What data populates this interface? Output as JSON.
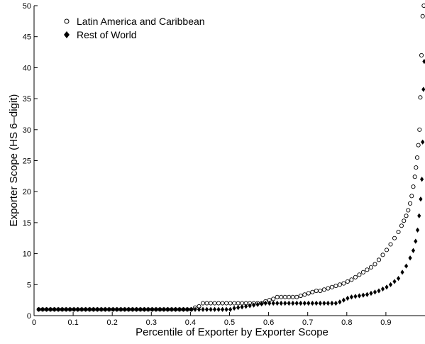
{
  "chart_data": {
    "type": "scatter",
    "title": "",
    "xlabel": "Percentile of Exporter by Exporter Scope",
    "ylabel": "Exporter Scope (HS 6–digit)",
    "xlim": [
      0,
      1
    ],
    "ylim": [
      0,
      50
    ],
    "xticks": [
      "0",
      "0.1",
      "0.2",
      "0.3",
      "0.4",
      "0.5",
      "0.6",
      "0.7",
      "0.8",
      "0.9"
    ],
    "yticks": [
      "0",
      "5",
      "10",
      "15",
      "20",
      "25",
      "30",
      "35",
      "40",
      "45",
      "50"
    ],
    "grid": false,
    "legend_position": "top-left",
    "series": [
      {
        "name": "Latin America and Caribbean",
        "marker": "open-circle",
        "color": "#000000",
        "points": [
          [
            0.012,
            1
          ],
          [
            0.022,
            1
          ],
          [
            0.032,
            1
          ],
          [
            0.042,
            1
          ],
          [
            0.052,
            1
          ],
          [
            0.062,
            1
          ],
          [
            0.072,
            1
          ],
          [
            0.082,
            1
          ],
          [
            0.092,
            1
          ],
          [
            0.102,
            1
          ],
          [
            0.112,
            1
          ],
          [
            0.122,
            1
          ],
          [
            0.132,
            1
          ],
          [
            0.142,
            1
          ],
          [
            0.152,
            1
          ],
          [
            0.162,
            1
          ],
          [
            0.172,
            1
          ],
          [
            0.182,
            1
          ],
          [
            0.192,
            1
          ],
          [
            0.202,
            1
          ],
          [
            0.212,
            1
          ],
          [
            0.222,
            1
          ],
          [
            0.232,
            1
          ],
          [
            0.242,
            1
          ],
          [
            0.252,
            1
          ],
          [
            0.262,
            1
          ],
          [
            0.272,
            1
          ],
          [
            0.282,
            1
          ],
          [
            0.292,
            1
          ],
          [
            0.302,
            1
          ],
          [
            0.312,
            1
          ],
          [
            0.322,
            1
          ],
          [
            0.332,
            1
          ],
          [
            0.342,
            1
          ],
          [
            0.352,
            1
          ],
          [
            0.362,
            1
          ],
          [
            0.372,
            1
          ],
          [
            0.382,
            1
          ],
          [
            0.392,
            1
          ],
          [
            0.402,
            1
          ],
          [
            0.412,
            1.3
          ],
          [
            0.422,
            1.5
          ],
          [
            0.432,
            2
          ],
          [
            0.442,
            2
          ],
          [
            0.452,
            2
          ],
          [
            0.462,
            2
          ],
          [
            0.472,
            2
          ],
          [
            0.482,
            2
          ],
          [
            0.492,
            2
          ],
          [
            0.502,
            2
          ],
          [
            0.512,
            2
          ],
          [
            0.522,
            2
          ],
          [
            0.532,
            2
          ],
          [
            0.542,
            2
          ],
          [
            0.552,
            2
          ],
          [
            0.562,
            2
          ],
          [
            0.572,
            2
          ],
          [
            0.582,
            2
          ],
          [
            0.592,
            2.3
          ],
          [
            0.602,
            2.5
          ],
          [
            0.612,
            2.7
          ],
          [
            0.622,
            3
          ],
          [
            0.632,
            3
          ],
          [
            0.642,
            3
          ],
          [
            0.652,
            3
          ],
          [
            0.662,
            3
          ],
          [
            0.672,
            3
          ],
          [
            0.682,
            3.2
          ],
          [
            0.692,
            3.4
          ],
          [
            0.702,
            3.6
          ],
          [
            0.712,
            3.8
          ],
          [
            0.722,
            4
          ],
          [
            0.732,
            4
          ],
          [
            0.742,
            4.2
          ],
          [
            0.752,
            4.4
          ],
          [
            0.762,
            4.6
          ],
          [
            0.772,
            4.8
          ],
          [
            0.782,
            5
          ],
          [
            0.792,
            5.2
          ],
          [
            0.802,
            5.5
          ],
          [
            0.812,
            5.8
          ],
          [
            0.822,
            6.2
          ],
          [
            0.832,
            6.6
          ],
          [
            0.842,
            7
          ],
          [
            0.852,
            7.4
          ],
          [
            0.862,
            7.8
          ],
          [
            0.872,
            8.3
          ],
          [
            0.882,
            9
          ],
          [
            0.892,
            9.8
          ],
          [
            0.902,
            10.6
          ],
          [
            0.912,
            11.5
          ],
          [
            0.922,
            12.5
          ],
          [
            0.932,
            13.5
          ],
          [
            0.94,
            14.5
          ],
          [
            0.946,
            15.3
          ],
          [
            0.952,
            16.1
          ],
          [
            0.957,
            17
          ],
          [
            0.962,
            18.1
          ],
          [
            0.966,
            19.3
          ],
          [
            0.97,
            20.8
          ],
          [
            0.974,
            22.4
          ],
          [
            0.977,
            23.9
          ],
          [
            0.98,
            25.5
          ],
          [
            0.983,
            27.5
          ],
          [
            0.986,
            30
          ],
          [
            0.988,
            35.2
          ],
          [
            0.991,
            42
          ],
          [
            0.994,
            48.3
          ],
          [
            0.997,
            50
          ]
        ]
      },
      {
        "name": "Rest of World",
        "marker": "filled-diamond",
        "color": "#000000",
        "points": [
          [
            0.012,
            1
          ],
          [
            0.022,
            1
          ],
          [
            0.032,
            1
          ],
          [
            0.042,
            1
          ],
          [
            0.052,
            1
          ],
          [
            0.062,
            1
          ],
          [
            0.072,
            1
          ],
          [
            0.082,
            1
          ],
          [
            0.092,
            1
          ],
          [
            0.102,
            1
          ],
          [
            0.112,
            1
          ],
          [
            0.122,
            1
          ],
          [
            0.132,
            1
          ],
          [
            0.142,
            1
          ],
          [
            0.152,
            1
          ],
          [
            0.162,
            1
          ],
          [
            0.172,
            1
          ],
          [
            0.182,
            1
          ],
          [
            0.192,
            1
          ],
          [
            0.202,
            1
          ],
          [
            0.212,
            1
          ],
          [
            0.222,
            1
          ],
          [
            0.232,
            1
          ],
          [
            0.242,
            1
          ],
          [
            0.252,
            1
          ],
          [
            0.262,
            1
          ],
          [
            0.272,
            1
          ],
          [
            0.282,
            1
          ],
          [
            0.292,
            1
          ],
          [
            0.302,
            1
          ],
          [
            0.312,
            1
          ],
          [
            0.322,
            1
          ],
          [
            0.332,
            1
          ],
          [
            0.342,
            1
          ],
          [
            0.352,
            1
          ],
          [
            0.362,
            1
          ],
          [
            0.372,
            1
          ],
          [
            0.382,
            1
          ],
          [
            0.392,
            1
          ],
          [
            0.402,
            1
          ],
          [
            0.412,
            1
          ],
          [
            0.422,
            1
          ],
          [
            0.432,
            1
          ],
          [
            0.442,
            1
          ],
          [
            0.452,
            1
          ],
          [
            0.462,
            1
          ],
          [
            0.472,
            1
          ],
          [
            0.482,
            1
          ],
          [
            0.492,
            1
          ],
          [
            0.502,
            1
          ],
          [
            0.512,
            1.2
          ],
          [
            0.522,
            1.3
          ],
          [
            0.532,
            1.4
          ],
          [
            0.542,
            1.5
          ],
          [
            0.552,
            1.6
          ],
          [
            0.562,
            1.7
          ],
          [
            0.572,
            1.8
          ],
          [
            0.582,
            1.9
          ],
          [
            0.592,
            2
          ],
          [
            0.602,
            2
          ],
          [
            0.612,
            2
          ],
          [
            0.622,
            2
          ],
          [
            0.632,
            2
          ],
          [
            0.642,
            2
          ],
          [
            0.652,
            2
          ],
          [
            0.662,
            2
          ],
          [
            0.672,
            2
          ],
          [
            0.682,
            2
          ],
          [
            0.692,
            2
          ],
          [
            0.702,
            2
          ],
          [
            0.712,
            2
          ],
          [
            0.722,
            2
          ],
          [
            0.732,
            2
          ],
          [
            0.742,
            2
          ],
          [
            0.752,
            2
          ],
          [
            0.762,
            2
          ],
          [
            0.772,
            2
          ],
          [
            0.782,
            2.2
          ],
          [
            0.792,
            2.5
          ],
          [
            0.802,
            2.8
          ],
          [
            0.812,
            3
          ],
          [
            0.822,
            3.1
          ],
          [
            0.832,
            3.2
          ],
          [
            0.842,
            3.3
          ],
          [
            0.852,
            3.4
          ],
          [
            0.862,
            3.6
          ],
          [
            0.872,
            3.8
          ],
          [
            0.882,
            4
          ],
          [
            0.892,
            4.3
          ],
          [
            0.902,
            4.6
          ],
          [
            0.912,
            5
          ],
          [
            0.922,
            5.5
          ],
          [
            0.932,
            6
          ],
          [
            0.942,
            7
          ],
          [
            0.952,
            8
          ],
          [
            0.962,
            9.3
          ],
          [
            0.97,
            10.5
          ],
          [
            0.976,
            12
          ],
          [
            0.981,
            13.8
          ],
          [
            0.985,
            16.1
          ],
          [
            0.989,
            18.8
          ],
          [
            0.992,
            22
          ],
          [
            0.994,
            28
          ],
          [
            0.996,
            36.5
          ],
          [
            0.998,
            41
          ]
        ]
      }
    ]
  }
}
